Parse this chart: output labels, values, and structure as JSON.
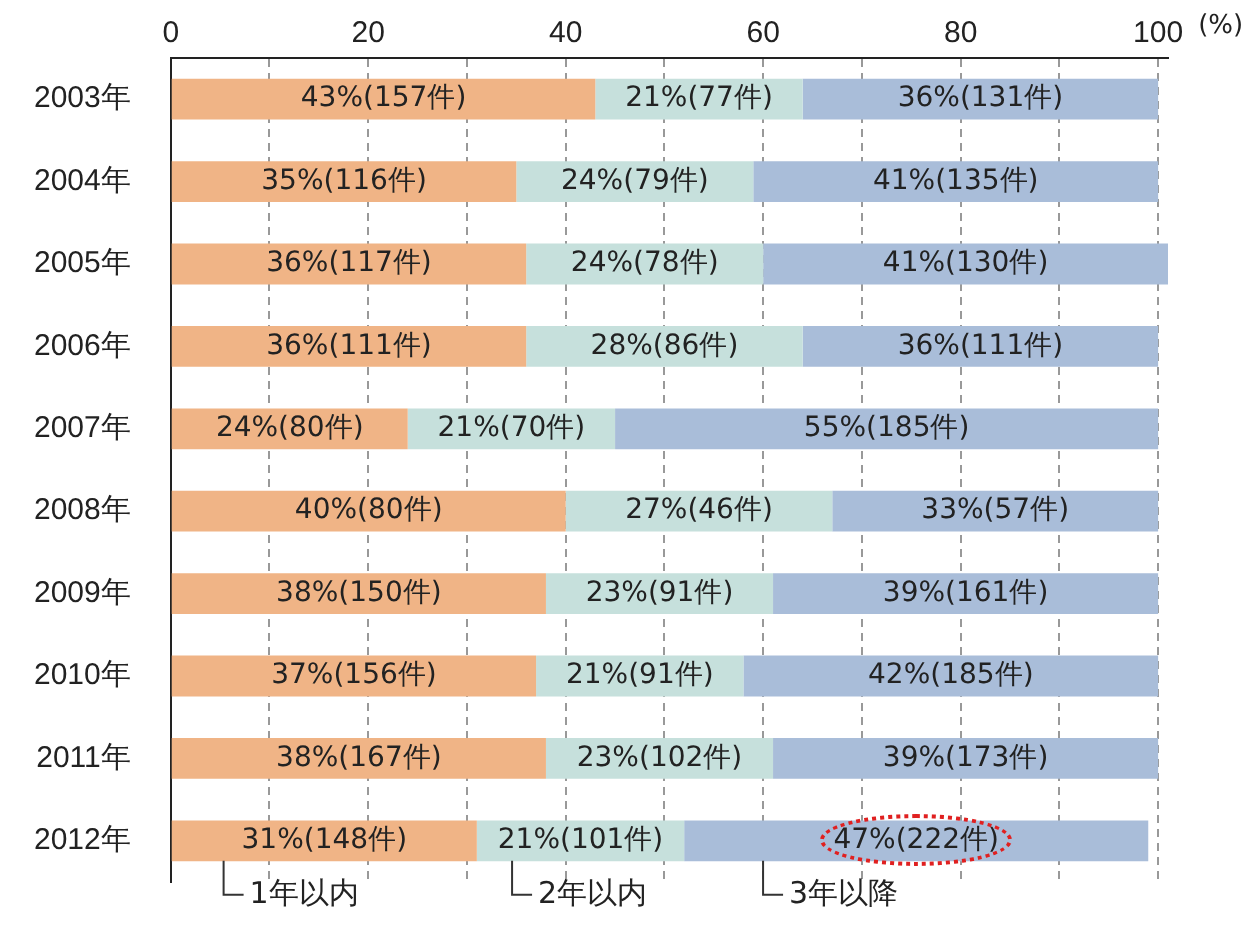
{
  "chart_data": {
    "type": "bar",
    "orientation": "horizontal",
    "stacked": true,
    "xlabel": "(%)",
    "categories": [
      "2003年",
      "2004年",
      "2005年",
      "2006年",
      "2007年",
      "2008年",
      "2009年",
      "2010年",
      "2011年",
      "2012年"
    ],
    "series": [
      {
        "name": "1年以内",
        "color": "#f0b486",
        "values": [
          43,
          35,
          36,
          36,
          24,
          40,
          38,
          37,
          38,
          31
        ],
        "value_labels": [
          "43%(157件)",
          "35%(116件)",
          "36%(117件)",
          "36%(111件)",
          "24%(80件)",
          "40%(80件)",
          "38%(150件)",
          "37%(156件)",
          "38%(167件)",
          "31%(148件)"
        ]
      },
      {
        "name": "2年以内",
        "color": "#c6e0dc",
        "values": [
          21,
          24,
          24,
          28,
          21,
          27,
          23,
          21,
          23,
          21
        ],
        "value_labels": [
          "21%(77件)",
          "24%(79件)",
          "24%(78件)",
          "28%(86件)",
          "21%(70件)",
          "27%(46件)",
          "23%(91件)",
          "21%(91件)",
          "23%(102件)",
          "21%(101件)"
        ]
      },
      {
        "name": "3年以降",
        "color": "#a9bdd9",
        "values": [
          36,
          41,
          41,
          36,
          55,
          33,
          39,
          42,
          39,
          47
        ],
        "value_labels": [
          "36%(131件)",
          "41%(135件)",
          "41%(130件)",
          "36%(111件)",
          "55%(185件)",
          "33%(57件)",
          "39%(161件)",
          "42%(185件)",
          "39%(173件)",
          "47%(222件)"
        ]
      }
    ],
    "xlim": [
      0,
      101
    ],
    "xticks": [
      0,
      {
        "value": 10,
        "label": null
      },
      20,
      {
        "value": 30,
        "label": null
      },
      40,
      {
        "value": 50,
        "label": null
      },
      60,
      {
        "value": 70,
        "label": null
      },
      80,
      {
        "value": 90,
        "label": null
      },
      100
    ],
    "grid": true
  }
}
